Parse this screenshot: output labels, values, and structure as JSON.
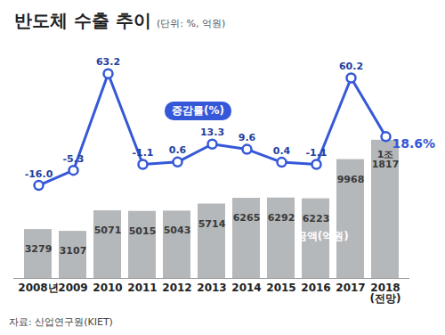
{
  "chart_data": {
    "type": "bar",
    "title": "반도체 수출 추이",
    "subtitle": "(단위: %, 억원)",
    "source": "자료: 산업연구원(KIET)",
    "categories": [
      "2008년",
      "2009",
      "2010",
      "2011",
      "2012",
      "2013",
      "2014",
      "2015",
      "2016",
      "2017",
      "2018\n(전망)"
    ],
    "series": [
      {
        "name": "금액(억원)",
        "type": "bar",
        "color": "#b5b8bb",
        "values": [
          3279,
          3107,
          5071,
          5015,
          5043,
          5714,
          6265,
          6292,
          6223,
          9968,
          11817
        ],
        "value_labels": [
          "3279",
          "3107",
          "5071",
          "5015",
          "5043",
          "5714",
          "6265",
          "6292",
          "6223",
          "9968",
          "1조\n1817"
        ]
      },
      {
        "name": "증감률(%)",
        "type": "line",
        "axis": "y2",
        "color": "#3558d8",
        "marker": "circle",
        "values": [
          -16.0,
          -5.3,
          63.2,
          -1.1,
          0.6,
          13.3,
          9.6,
          0.4,
          -1.1,
          60.2,
          18.6
        ],
        "value_labels": [
          "-16.0",
          "-5.3",
          "63.2",
          "-1.1",
          "0.6",
          "13.3",
          "9.6",
          "0.4",
          "-1.1",
          "60.2",
          "18.6%"
        ]
      }
    ],
    "ylim": [
      -1400,
      19900
    ],
    "y2lim": [
      -82,
      76
    ],
    "data_labels": true,
    "tick_labels": "x",
    "grid": false
  }
}
